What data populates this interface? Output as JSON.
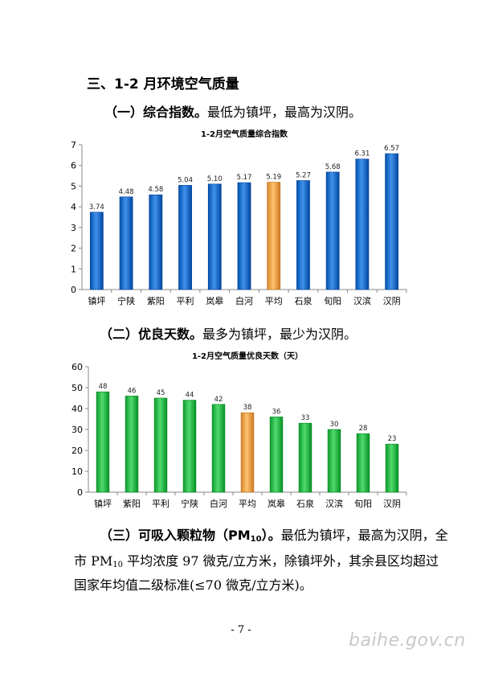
{
  "heading": "三、1-2 月环境空气质量",
  "section1": {
    "label": "（一）综合指数。",
    "text": "最低为镇坪，最高为汉阴。"
  },
  "section2": {
    "label": "（二）优良天数。",
    "text": "最多为镇坪，最少为汉阴。"
  },
  "section3": {
    "label_pre": "（三）可吸入颗粒物（PM",
    "label_sub": "10",
    "label_post": "）。",
    "line1_text": "最低为镇坪，最高为汉阴，全",
    "line2_pre": "市 PM",
    "line2_sub": "10",
    "line2_post": " 平均浓度 97 微克/立方米，除镇坪外，其余县区均超过",
    "line3": "国家年均值二级标准(≤70 微克/立方米)。"
  },
  "page_number": "- 7 -",
  "watermark": "baihe.gov.cn",
  "colors": {
    "blue": "#1E6FC9",
    "green": "#2DB84C",
    "orange": "#F5A04A"
  },
  "chart_data": [
    {
      "type": "bar",
      "title": "1-2月空气质量综合指数",
      "categories": [
        "镇坪",
        "宁陕",
        "紫阳",
        "平利",
        "岚皋",
        "白河",
        "平均",
        "石泉",
        "旬阳",
        "汉滨",
        "汉阴"
      ],
      "values": [
        3.74,
        4.48,
        4.58,
        5.04,
        5.1,
        5.17,
        5.19,
        5.27,
        5.68,
        6.31,
        6.57
      ],
      "labels": [
        "3.74",
        "4.48",
        "4.58",
        "5.04",
        "5.10",
        "5.17",
        "5.19",
        "5.27",
        "5.68",
        "6.31",
        "6.57"
      ],
      "ylim": [
        0,
        7
      ],
      "yticks": [
        "0",
        "1",
        "2",
        "3",
        "4",
        "5",
        "6",
        "7"
      ],
      "highlight_category": "平均",
      "bar_color": "#1E6FC9",
      "highlight_color": "#F5A04A",
      "grid": false,
      "xlabel": "",
      "ylabel": ""
    },
    {
      "type": "bar",
      "title": "1-2月空气质量优良天数（天）",
      "categories": [
        "镇坪",
        "紫阳",
        "平利",
        "宁陕",
        "白河",
        "平均",
        "岚皋",
        "石泉",
        "汉滨",
        "旬阳",
        "汉阴"
      ],
      "values": [
        48,
        46,
        45,
        44,
        42,
        38,
        36,
        33,
        30,
        28,
        23
      ],
      "labels": [
        "48",
        "46",
        "45",
        "44",
        "42",
        "38",
        "36",
        "33",
        "30",
        "28",
        "23"
      ],
      "ylim": [
        0,
        60
      ],
      "yticks": [
        "0",
        "10",
        "20",
        "30",
        "40",
        "50",
        "60"
      ],
      "highlight_category": "平均",
      "bar_color": "#2DB84C",
      "highlight_color": "#F5A04A",
      "grid": false,
      "xlabel": "",
      "ylabel": ""
    }
  ]
}
